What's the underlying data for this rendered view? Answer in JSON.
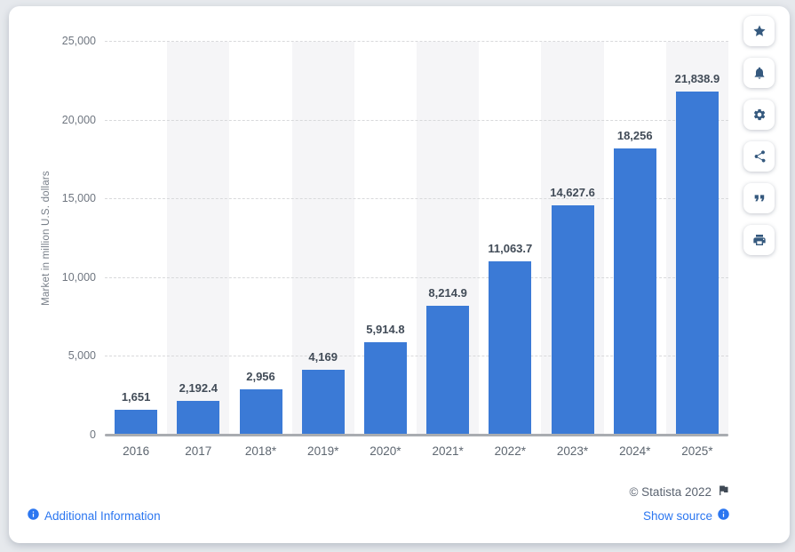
{
  "chart_data": {
    "type": "bar",
    "title": "",
    "xlabel": "",
    "ylabel": "Market in million U.S. dollars",
    "ylim": [
      0,
      25000
    ],
    "yticks": [
      0,
      5000,
      10000,
      15000,
      20000,
      25000
    ],
    "ytick_labels": [
      "0",
      "5,000",
      "10,000",
      "15,000",
      "20,000",
      "25,000"
    ],
    "categories": [
      "2016",
      "2017",
      "2018*",
      "2019*",
      "2020*",
      "2021*",
      "2022*",
      "2023*",
      "2024*",
      "2025*"
    ],
    "values": [
      1651,
      2192.4,
      2956,
      4169,
      5914.8,
      8214.9,
      11063.7,
      14627.6,
      18256,
      21838.9
    ],
    "value_labels": [
      "1,651",
      "2,192.4",
      "2,956",
      "4,169",
      "5,914.8",
      "8,214.9",
      "11,063.7",
      "14,627.6",
      "18,256",
      "21,838.9"
    ],
    "grid": "horizontal-dashed",
    "legend": "none",
    "bar_color": "#3b7ad6",
    "stripe_color": "#f5f5f7"
  },
  "toolbar": {
    "buttons": [
      {
        "label": "favorite",
        "icon": "star-icon"
      },
      {
        "label": "alert",
        "icon": "bell-icon"
      },
      {
        "label": "settings",
        "icon": "gear-icon"
      },
      {
        "label": "share",
        "icon": "share-icon"
      },
      {
        "label": "cite",
        "icon": "quote-icon"
      },
      {
        "label": "print",
        "icon": "print-icon"
      }
    ]
  },
  "footer": {
    "copyright": "© Statista 2022",
    "additional_information": "Additional Information",
    "show_source": "Show source"
  },
  "colors": {
    "bar": "#3b7ad6",
    "link": "#2b76f0",
    "icon": "#35597e",
    "copyright_text": "#5a6370",
    "page_background": "#e6e9ed",
    "card_background": "#ffffff"
  }
}
